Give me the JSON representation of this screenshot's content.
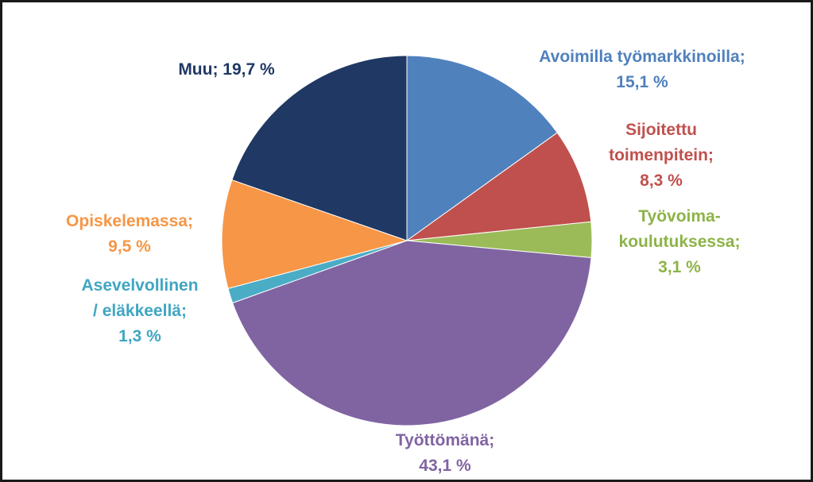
{
  "chart_data": {
    "type": "pie",
    "title": "",
    "slices": [
      {
        "label_lines": [
          "Avoimilla työmarkkinoilla;",
          "15,1 %"
        ],
        "value": 15.1,
        "color": "#4F81BD",
        "label_color": "#4F81BD"
      },
      {
        "label_lines": [
          "Sijoitettu",
          "toimenpitein;",
          "8,3 %"
        ],
        "value": 8.3,
        "color": "#C0504D",
        "label_color": "#C0504D"
      },
      {
        "label_lines": [
          "Työvoima-",
          "koulutuksessa;",
          "3,1 %"
        ],
        "value": 3.1,
        "color": "#9BBB59",
        "label_color": "#8DB348"
      },
      {
        "label_lines": [
          "Työttömänä;",
          "43,1 %"
        ],
        "value": 43.1,
        "color": "#8064A2",
        "label_color": "#8064A2"
      },
      {
        "label_lines": [
          "Asevelvollinen",
          "/ eläkkeellä;",
          "1,3 %"
        ],
        "value": 1.3,
        "color": "#4BACC6",
        "label_color": "#3FA6C2"
      },
      {
        "label_lines": [
          "Opiskelemassa;",
          "9,5 %"
        ],
        "value": 9.5,
        "color": "#F79646",
        "label_color": "#F79646"
      },
      {
        "label_lines": [
          "Muu; 19,7 %"
        ],
        "value": 19.7,
        "color": "#1F3864",
        "label_color": "#1F3864"
      }
    ],
    "start_angle": "12 o'clock",
    "direction": "clockwise",
    "legend": "none (data labels beside slices)"
  }
}
